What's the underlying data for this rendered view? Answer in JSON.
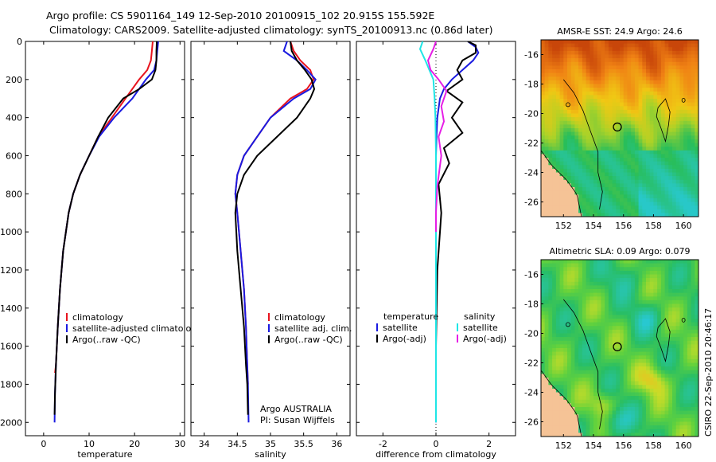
{
  "title_line1": "Argo profile: CS 5901164_149 12-Sep-2010 20100915_102 20.915S 155.592E",
  "title_line2": "Climatology: CARS2009. Satellite-adjusted climatology: synTS_20100913.nc (0.86d later)",
  "footer_vertical": "CSIRO 22-Sep-2010 20:46:17",
  "colors": {
    "clim": "#e8141e",
    "sat": "#1a1ae0",
    "argo": "#000000",
    "sat_cyan": "#1ee6e6",
    "argo_mag": "#e61ee6"
  },
  "chart_data": [
    {
      "id": "temp",
      "type": "line",
      "xlabel": "temperature",
      "xlim": [
        -4,
        31
      ],
      "ylim": [
        0,
        2070
      ],
      "xticks": [
        0,
        10,
        20,
        30
      ],
      "yticks": [
        0,
        200,
        400,
        600,
        800,
        1000,
        1200,
        1400,
        1600,
        1800,
        2000
      ],
      "legend": [
        "climatology",
        "satellite-adjusted climatology",
        "Argo(..raw -QC)"
      ],
      "series": [
        {
          "name": "climatology",
          "color": "clim",
          "x": [
            24.0,
            23.8,
            23.6,
            22.8,
            21.0,
            18.0,
            15.0,
            12.0,
            10.0,
            8.0,
            6.5,
            5.5,
            4.3,
            3.6,
            3.1,
            2.7,
            2.5
          ],
          "y": [
            0,
            50,
            100,
            150,
            200,
            300,
            400,
            500,
            600,
            700,
            800,
            900,
            1100,
            1300,
            1500,
            1700,
            1740
          ]
        },
        {
          "name": "satellite-adjusted climatology",
          "color": "sat",
          "x": [
            25.2,
            25.0,
            24.8,
            24.3,
            22.5,
            19.5,
            15.5,
            12.2,
            10.0,
            8.0,
            6.5,
            5.5,
            4.3,
            3.6,
            3.1,
            2.7,
            2.5,
            2.4
          ],
          "y": [
            0,
            50,
            100,
            150,
            200,
            300,
            400,
            500,
            600,
            700,
            800,
            900,
            1100,
            1300,
            1500,
            1700,
            1850,
            2000
          ]
        },
        {
          "name": "Argo(..raw -QC)",
          "color": "argo",
          "x": [
            24.9,
            24.8,
            24.8,
            24.6,
            23.8,
            21.0,
            17.5,
            14.2,
            12.0,
            10.0,
            8.0,
            6.5,
            5.5,
            4.3,
            3.6,
            3.1,
            2.7,
            2.5,
            2.4
          ],
          "y": [
            0,
            50,
            100,
            150,
            200,
            250,
            300,
            400,
            500,
            600,
            700,
            800,
            900,
            1100,
            1300,
            1500,
            1700,
            1850,
            1960
          ]
        }
      ]
    },
    {
      "id": "sal",
      "type": "line",
      "xlabel": "salinity",
      "xlim": [
        33.8,
        36.2
      ],
      "ylim": [
        0,
        2070
      ],
      "xticks": [
        34,
        34.5,
        35,
        35.5,
        36
      ],
      "yticks": [
        0,
        200,
        400,
        600,
        800,
        1000,
        1200,
        1400,
        1600,
        1800,
        2000
      ],
      "legend": [
        "climatology",
        "satellite adj. clim.",
        "Argo(..raw -QC)"
      ],
      "annotation": [
        "Argo AUSTRALIA",
        "PI: Susan Wijffels"
      ],
      "series": [
        {
          "name": "climatology",
          "color": "clim",
          "x": [
            35.3,
            35.35,
            35.45,
            35.6,
            35.65,
            35.55,
            35.3,
            35.0,
            34.8,
            34.6,
            34.5,
            34.47,
            34.5,
            34.55,
            34.6,
            34.63,
            34.65,
            34.66
          ],
          "y": [
            0,
            50,
            100,
            150,
            200,
            250,
            300,
            400,
            500,
            600,
            700,
            800,
            900,
            1100,
            1300,
            1500,
            1700,
            1800
          ]
        },
        {
          "name": "satellite adj. clim.",
          "color": "sat",
          "x": [
            35.25,
            35.2,
            35.4,
            35.55,
            35.68,
            35.6,
            35.35,
            35.0,
            34.8,
            34.6,
            34.5,
            34.47,
            34.5,
            34.55,
            34.6,
            34.63,
            34.65,
            34.66,
            34.67
          ],
          "y": [
            0,
            50,
            100,
            150,
            200,
            250,
            300,
            400,
            500,
            600,
            700,
            800,
            900,
            1100,
            1300,
            1500,
            1700,
            1800,
            2000
          ]
        },
        {
          "name": "Argo(..raw -QC)",
          "color": "argo",
          "x": [
            35.3,
            35.32,
            35.4,
            35.52,
            35.62,
            35.66,
            35.6,
            35.4,
            35.1,
            34.8,
            34.6,
            34.5,
            34.47,
            34.5,
            34.55,
            34.6,
            34.63,
            34.65,
            34.66
          ],
          "y": [
            0,
            50,
            100,
            150,
            200,
            250,
            300,
            400,
            500,
            600,
            700,
            800,
            900,
            1100,
            1300,
            1500,
            1700,
            1800,
            1960
          ]
        }
      ]
    },
    {
      "id": "diff",
      "type": "line",
      "xlabel": "difference from climatology",
      "xlim": [
        -3,
        3
      ],
      "ylim": [
        0,
        2070
      ],
      "xticks": [
        -2,
        0,
        2
      ],
      "yticks": [
        0,
        200,
        400,
        600,
        800,
        1000,
        1200,
        1400,
        1600,
        1800,
        2000
      ],
      "legend_left_title": "temperature",
      "legend_right_title": "salinity",
      "legend": [
        "satellite",
        "Argo(-adj)",
        "satellite",
        "Argo(-adj)"
      ],
      "series": [
        {
          "name": "satellite",
          "color": "sat",
          "x": [
            1.2,
            1.5,
            1.6,
            1.4,
            1.0,
            0.6,
            0.3,
            0.15,
            0.05,
            0.02,
            0.0,
            0.0,
            0.0,
            0.0,
            0.0
          ],
          "y": [
            0,
            30,
            60,
            100,
            150,
            200,
            250,
            300,
            400,
            500,
            600,
            800,
            1000,
            1500,
            2000
          ]
        },
        {
          "name": "Argo(-adj)",
          "color": "argo",
          "x": [
            1.2,
            1.5,
            1.5,
            1.0,
            0.8,
            1.0,
            0.4,
            1.0,
            0.6,
            1.0,
            0.3,
            0.5,
            0.1,
            0.2,
            0.05,
            0.0,
            0.0
          ],
          "y": [
            0,
            20,
            60,
            100,
            150,
            200,
            260,
            320,
            400,
            480,
            560,
            640,
            750,
            900,
            1200,
            1600,
            1960
          ]
        },
        {
          "name": "satellite",
          "color": "sat_cyan",
          "x": [
            -0.5,
            -0.6,
            -0.4,
            -0.25,
            -0.1,
            -0.05,
            -0.02,
            0.0,
            0.0,
            0.0,
            0.0
          ],
          "y": [
            0,
            40,
            100,
            150,
            200,
            300,
            400,
            600,
            1000,
            1500,
            2000
          ]
        },
        {
          "name": "Argo(-adj)",
          "color": "argo_mag",
          "x": [
            0.0,
            -0.1,
            -0.3,
            -0.2,
            0.1,
            0.4,
            0.2,
            0.3,
            0.1,
            0.2,
            0.05,
            0.0,
            0.0
          ],
          "y": [
            0,
            40,
            100,
            150,
            200,
            260,
            340,
            420,
            500,
            600,
            760,
            900,
            1000
          ]
        }
      ]
    },
    {
      "id": "sst",
      "type": "heatmap",
      "title": "AMSR-E SST: 24.9 Argo: 24.6",
      "xlim": [
        150.5,
        161
      ],
      "ylim": [
        -27,
        -15
      ],
      "xticks": [
        152,
        154,
        156,
        158,
        160
      ],
      "yticks": [
        -16,
        -18,
        -20,
        -22,
        -24,
        -26
      ],
      "argo_position": [
        155.592,
        -20.915
      ]
    },
    {
      "id": "sla",
      "type": "heatmap",
      "title": "Altimetric SLA: 0.09 Argo: 0.079",
      "xlim": [
        150.5,
        161
      ],
      "ylim": [
        -27,
        -15
      ],
      "xticks": [
        152,
        154,
        156,
        158,
        160
      ],
      "yticks": [
        -16,
        -18,
        -20,
        -22,
        -24,
        -26
      ],
      "argo_position": [
        155.592,
        -20.915
      ]
    }
  ]
}
